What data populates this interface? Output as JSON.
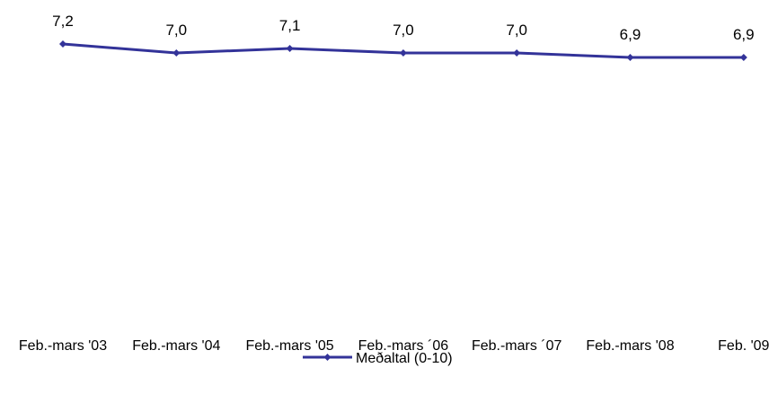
{
  "chart_data": {
    "type": "line",
    "categories": [
      "Feb.-mars '03",
      "Feb.-mars '04",
      "Feb.-mars '05",
      "Feb.-mars ´06",
      "Feb.-mars ´07",
      "Feb.-mars '08",
      "Feb. '09"
    ],
    "series": [
      {
        "name": "Meðaltal (0-10)",
        "values": [
          7.2,
          7.0,
          7.1,
          7.0,
          7.0,
          6.9,
          6.9
        ],
        "labels": [
          "7,2",
          "7,0",
          "7,1",
          "7,0",
          "7,0",
          "6,9",
          "6,9"
        ],
        "color": "#333399"
      }
    ],
    "title": "",
    "xlabel": "",
    "ylabel": "",
    "ylim": [
      0,
      10
    ],
    "grid": false,
    "legend": "bottom"
  }
}
